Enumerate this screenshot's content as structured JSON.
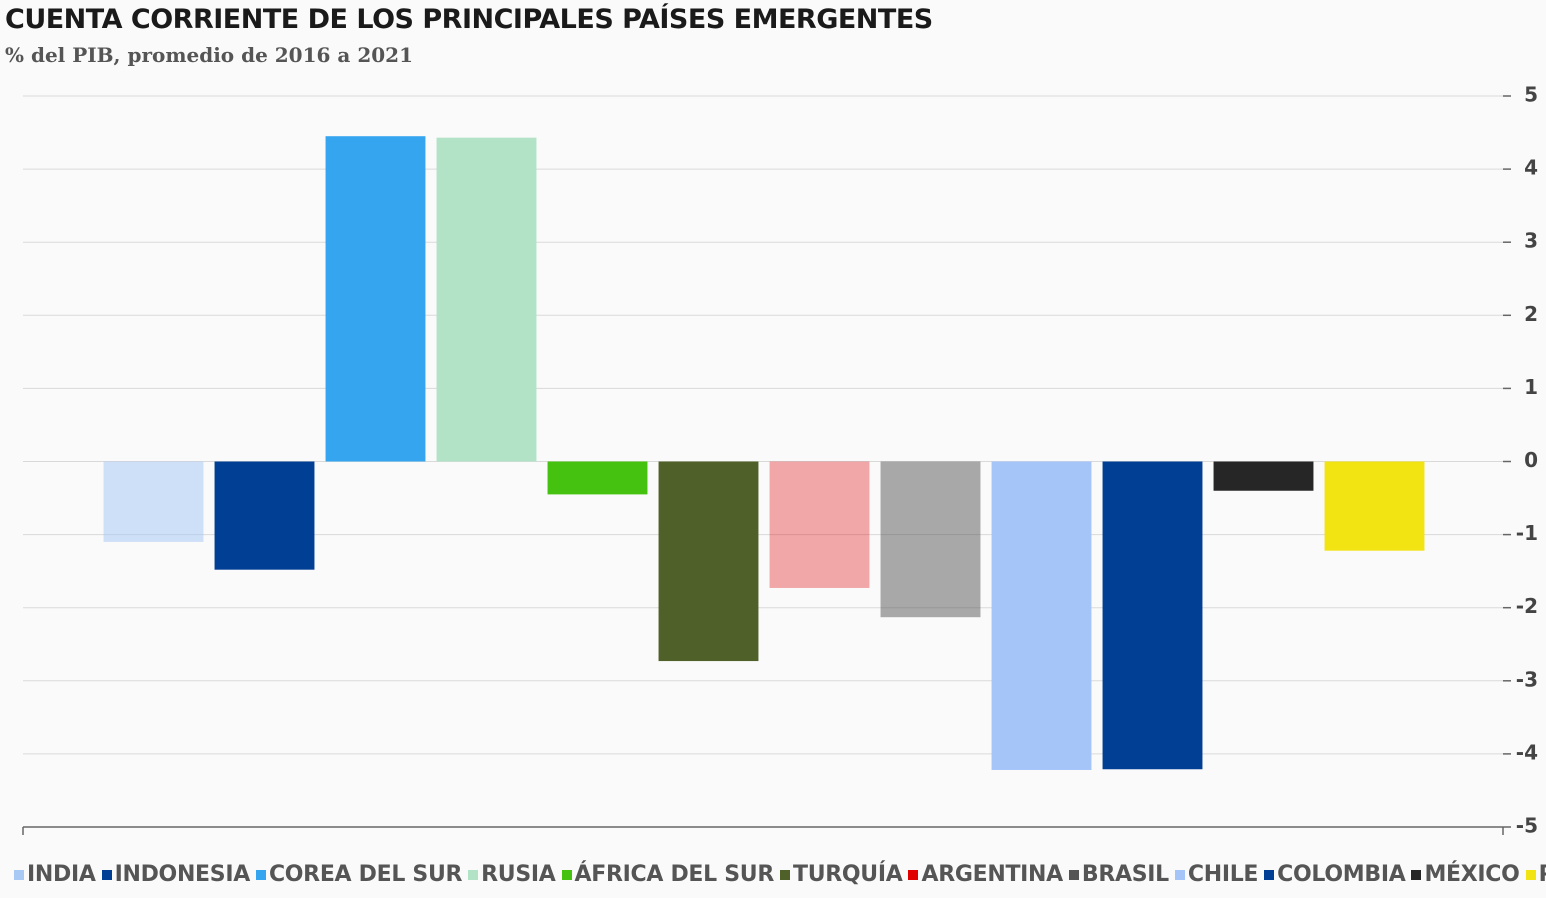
{
  "chart_data": {
    "type": "bar",
    "title": "CUENTA CORRIENTE DE LOS PRINCIPALES PAÍSES EMERGENTES",
    "subtitle": "% del PIB, promedio de 2016 a 2021",
    "categories": [
      "INDIA",
      "INDONESIA",
      "COREA DEL SUR",
      "RUSIA",
      "ÁFRICA DEL SUR",
      "TURQUÍA",
      "ARGENTINA",
      "BRASIL",
      "CHILE",
      "COLOMBIA",
      "MÉXICO",
      "PERÚ"
    ],
    "values": [
      -1.1,
      -1.48,
      4.45,
      4.43,
      -0.45,
      -2.73,
      -1.73,
      -2.13,
      -4.22,
      -4.21,
      -0.4,
      -1.22
    ],
    "colors": [
      "#a9c9f5",
      "#003f94",
      "#35a5ef",
      "#b2e3c6",
      "#45c110",
      "#4f6128",
      "#e00000",
      "#555555",
      "#a5c5f9",
      "#003f94",
      "#262626",
      "#f2e413"
    ],
    "bar_opacity": [
      0.55,
      1,
      1,
      1,
      1,
      1,
      0.33,
      0.5,
      1,
      1,
      1,
      1
    ],
    "ylim": [
      -5,
      5
    ],
    "yticks": [
      -5,
      -4,
      -3,
      -2,
      -1,
      0,
      1,
      2,
      3,
      4,
      5
    ],
    "grid": true
  }
}
